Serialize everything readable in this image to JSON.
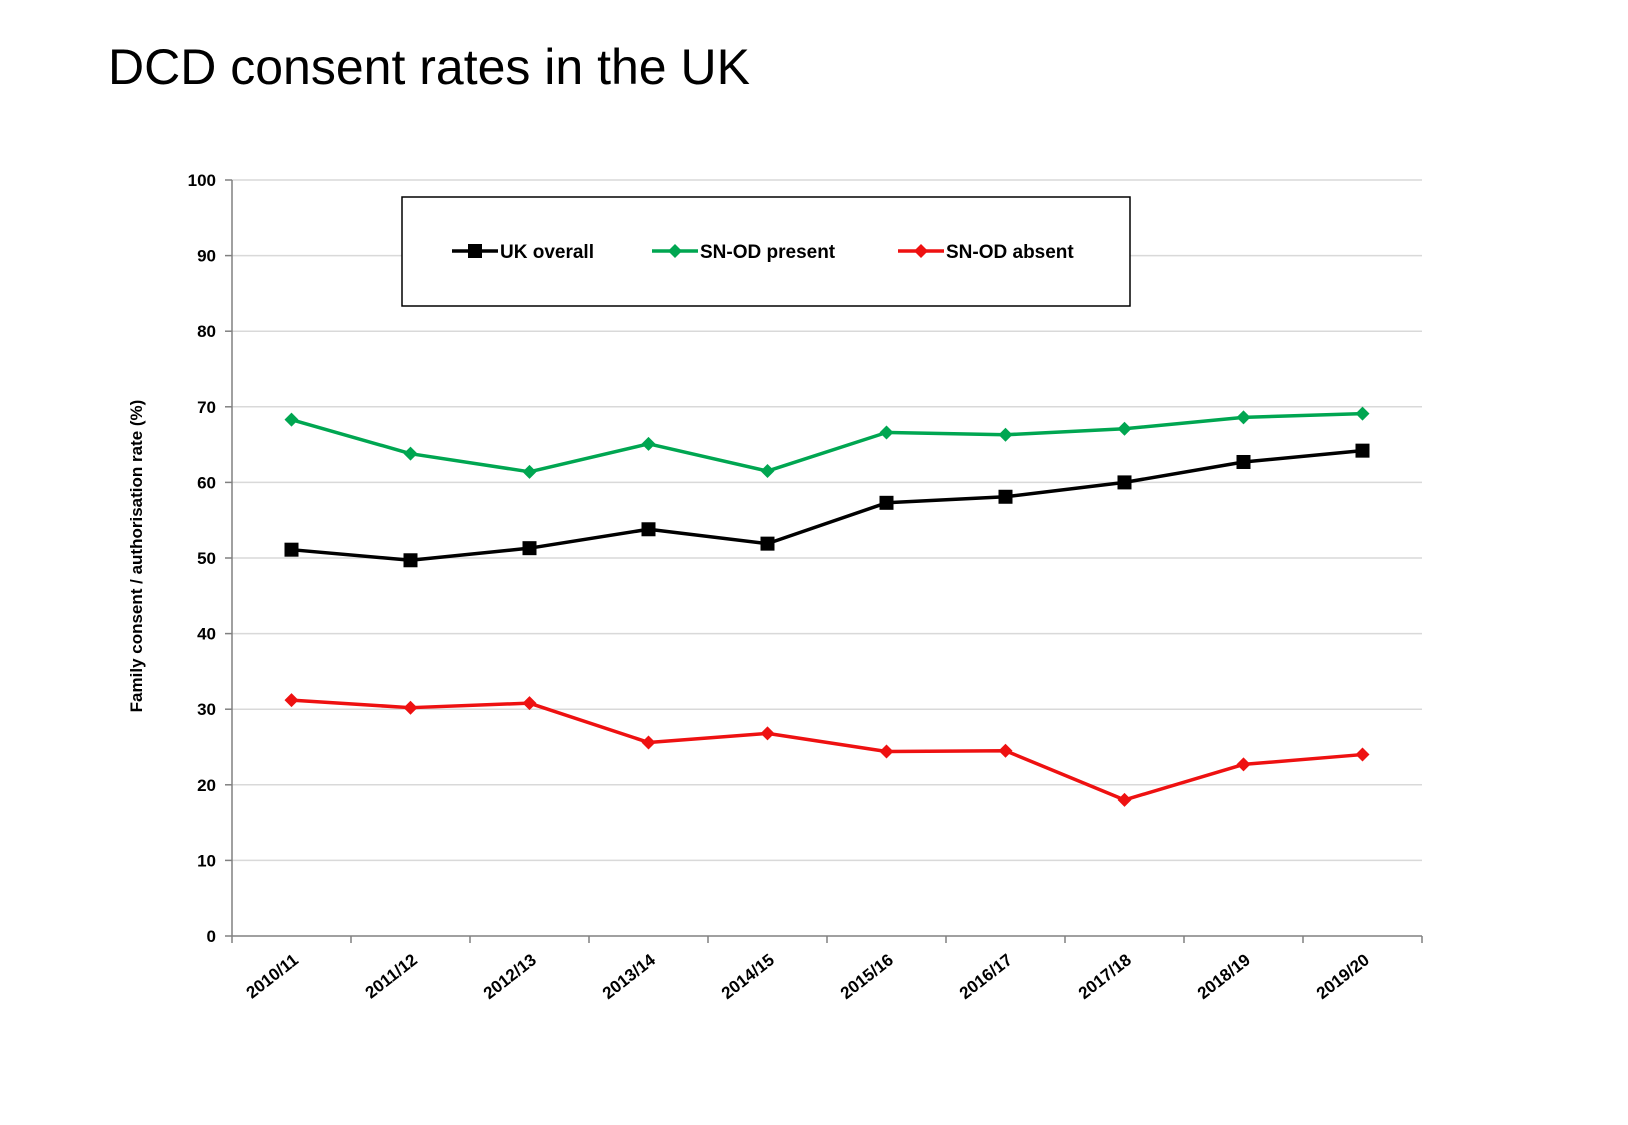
{
  "page_title": "DCD consent rates in the UK",
  "chart_data": {
    "type": "line",
    "title": "DCD consent rates in the UK",
    "xlabel": "",
    "ylabel": "Family consent / authorisation rate (%)",
    "ylim": [
      0,
      100
    ],
    "yticks": [
      0,
      10,
      20,
      30,
      40,
      50,
      60,
      70,
      80,
      90,
      100
    ],
    "grid": true,
    "legend_position": "top-center",
    "categories": [
      "2010/11",
      "2011/12",
      "2012/13",
      "2013/14",
      "2014/15",
      "2015/16",
      "2016/17",
      "2017/18",
      "2018/19",
      "2019/20"
    ],
    "series": [
      {
        "name": "UK overall",
        "color": "#000000",
        "marker": "square",
        "values": [
          51.1,
          49.7,
          51.3,
          53.8,
          51.9,
          57.3,
          58.1,
          60.0,
          62.7,
          64.2
        ]
      },
      {
        "name": "SN-OD present",
        "color": "#00A651",
        "marker": "diamond",
        "values": [
          68.3,
          63.8,
          61.4,
          65.1,
          61.5,
          66.6,
          66.3,
          67.1,
          68.6,
          69.1
        ]
      },
      {
        "name": "SN-OD absent",
        "color": "#EE1111",
        "marker": "diamond",
        "values": [
          31.2,
          30.2,
          30.8,
          25.6,
          26.8,
          24.4,
          24.5,
          18.0,
          22.7,
          24.0
        ]
      }
    ]
  }
}
